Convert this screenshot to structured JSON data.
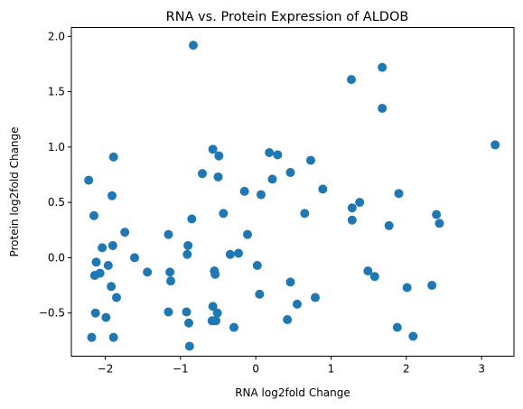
{
  "chart_data": {
    "type": "scatter",
    "title": "RNA vs. Protein Expression of ALDOB",
    "xlabel": "RNA log2fold Change",
    "ylabel": "Protein log2fold Change",
    "xlim": [
      -2.45,
      3.43
    ],
    "ylim": [
      -0.89,
      2.08
    ],
    "xticks": [
      -2,
      -1,
      0,
      1,
      2,
      3
    ],
    "yticks": [
      -0.5,
      0.0,
      0.5,
      1.0,
      1.5,
      2.0
    ],
    "xtick_labels": [
      "−2",
      "−1",
      "0",
      "1",
      "2",
      "3"
    ],
    "ytick_labels": [
      "−0.5",
      "0.0",
      "0.5",
      "1.0",
      "1.5",
      "2.0"
    ],
    "grid": false,
    "color": "#1f77b4",
    "points": [
      {
        "x": -2.22,
        "y": 0.7
      },
      {
        "x": -2.18,
        "y": -0.72
      },
      {
        "x": -2.15,
        "y": 0.38
      },
      {
        "x": -2.14,
        "y": -0.16
      },
      {
        "x": -2.13,
        "y": -0.5
      },
      {
        "x": -2.12,
        "y": -0.04
      },
      {
        "x": -2.07,
        "y": -0.14
      },
      {
        "x": -2.04,
        "y": 0.09
      },
      {
        "x": -1.99,
        "y": -0.54
      },
      {
        "x": -1.96,
        "y": -0.07
      },
      {
        "x": -1.92,
        "y": -0.26
      },
      {
        "x": -1.91,
        "y": 0.56
      },
      {
        "x": -1.9,
        "y": 0.11
      },
      {
        "x": -1.89,
        "y": 0.91
      },
      {
        "x": -1.89,
        "y": -0.72
      },
      {
        "x": -1.85,
        "y": -0.36
      },
      {
        "x": -1.74,
        "y": 0.23
      },
      {
        "x": -1.61,
        "y": 0.0
      },
      {
        "x": -1.44,
        "y": -0.13
      },
      {
        "x": -1.16,
        "y": 0.21
      },
      {
        "x": -1.16,
        "y": -0.49
      },
      {
        "x": -1.14,
        "y": -0.13
      },
      {
        "x": -1.13,
        "y": -0.21
      },
      {
        "x": -0.92,
        "y": -0.49
      },
      {
        "x": -0.91,
        "y": 0.03
      },
      {
        "x": -0.9,
        "y": 0.11
      },
      {
        "x": -0.89,
        "y": -0.59
      },
      {
        "x": -0.88,
        "y": -0.8
      },
      {
        "x": -0.85,
        "y": 0.35
      },
      {
        "x": -0.83,
        "y": 1.92
      },
      {
        "x": -0.71,
        "y": 0.76
      },
      {
        "x": -0.58,
        "y": -0.57
      },
      {
        "x": -0.57,
        "y": -0.44
      },
      {
        "x": -0.57,
        "y": 0.98
      },
      {
        "x": -0.55,
        "y": -0.12
      },
      {
        "x": -0.54,
        "y": -0.15
      },
      {
        "x": -0.53,
        "y": -0.57
      },
      {
        "x": -0.51,
        "y": -0.5
      },
      {
        "x": -0.5,
        "y": 0.73
      },
      {
        "x": -0.49,
        "y": 0.92
      },
      {
        "x": -0.43,
        "y": 0.4
      },
      {
        "x": -0.34,
        "y": 0.03
      },
      {
        "x": -0.29,
        "y": -0.63
      },
      {
        "x": -0.23,
        "y": 0.04
      },
      {
        "x": -0.15,
        "y": 0.6
      },
      {
        "x": -0.11,
        "y": 0.21
      },
      {
        "x": 0.02,
        "y": -0.07
      },
      {
        "x": 0.05,
        "y": -0.33
      },
      {
        "x": 0.07,
        "y": 0.57
      },
      {
        "x": 0.18,
        "y": 0.95
      },
      {
        "x": 0.22,
        "y": 0.71
      },
      {
        "x": 0.29,
        "y": 0.93
      },
      {
        "x": 0.42,
        "y": -0.56
      },
      {
        "x": 0.46,
        "y": -0.22
      },
      {
        "x": 0.46,
        "y": 0.77
      },
      {
        "x": 0.55,
        "y": -0.42
      },
      {
        "x": 0.65,
        "y": 0.4
      },
      {
        "x": 0.73,
        "y": 0.88
      },
      {
        "x": 0.79,
        "y": -0.36
      },
      {
        "x": 0.89,
        "y": 0.62
      },
      {
        "x": 1.27,
        "y": 1.61
      },
      {
        "x": 1.28,
        "y": 0.45
      },
      {
        "x": 1.28,
        "y": 0.34
      },
      {
        "x": 1.38,
        "y": 0.5
      },
      {
        "x": 1.49,
        "y": -0.12
      },
      {
        "x": 1.58,
        "y": -0.17
      },
      {
        "x": 1.68,
        "y": 1.72
      },
      {
        "x": 1.68,
        "y": 1.35
      },
      {
        "x": 1.77,
        "y": 0.29
      },
      {
        "x": 1.88,
        "y": -0.63
      },
      {
        "x": 1.9,
        "y": 0.58
      },
      {
        "x": 2.01,
        "y": -0.27
      },
      {
        "x": 2.09,
        "y": -0.71
      },
      {
        "x": 2.34,
        "y": -0.25
      },
      {
        "x": 2.4,
        "y": 0.39
      },
      {
        "x": 2.44,
        "y": 0.31
      },
      {
        "x": 3.18,
        "y": 1.02
      }
    ]
  }
}
